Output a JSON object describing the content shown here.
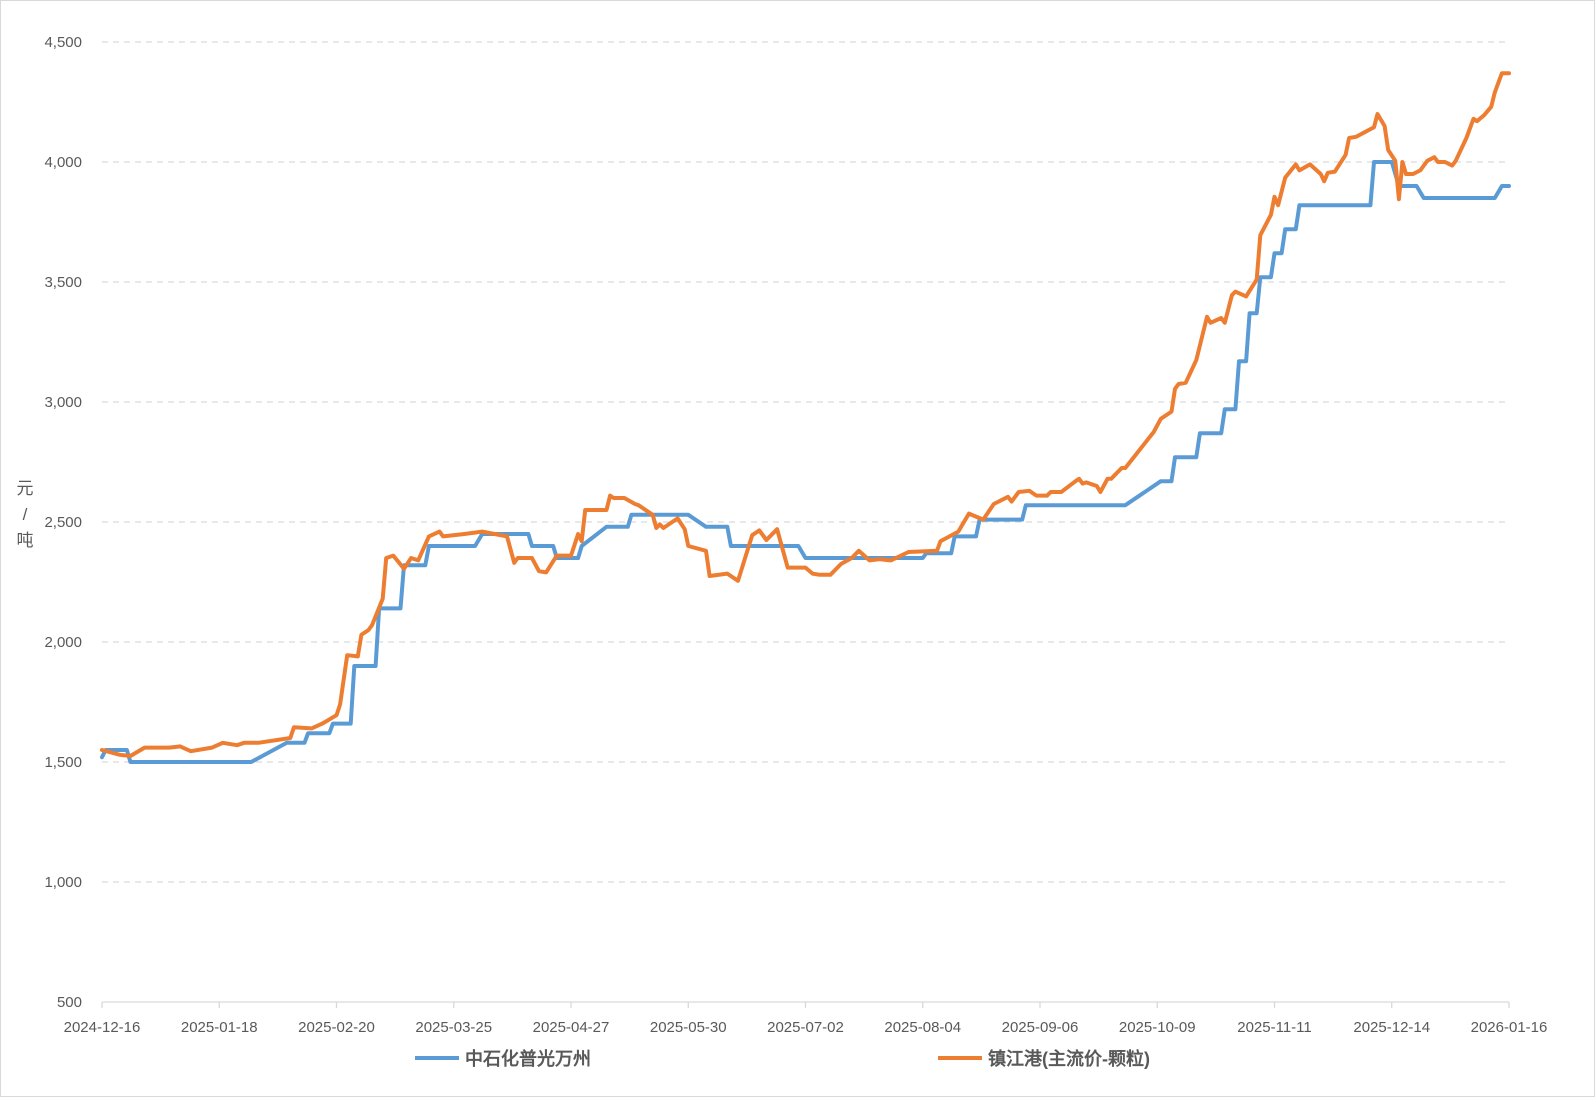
{
  "chart_data": {
    "type": "line",
    "title": "",
    "ylabel": "元/吨",
    "xlabel": "",
    "ylim": [
      500,
      4500
    ],
    "yticks": [
      500,
      1000,
      1500,
      2000,
      2500,
      3000,
      3500,
      4000,
      4500
    ],
    "ytick_labels": [
      "500",
      "1,000",
      "1,500",
      "2,000",
      "2,500",
      "3,000",
      "3,500",
      "4,000",
      "4,500"
    ],
    "xlim": [
      "2024-12-16",
      "2026-01-16"
    ],
    "xticks": [
      "2024-12-16",
      "2025-01-18",
      "2025-02-20",
      "2025-03-25",
      "2025-04-27",
      "2025-05-30",
      "2025-07-02",
      "2025-08-04",
      "2025-09-06",
      "2025-10-09",
      "2025-11-11",
      "2025-12-14",
      "2026-01-16"
    ],
    "grid": "horizontal dashed",
    "legend_position": "bottom",
    "series": [
      {
        "name": "中石化普光万州",
        "color": "#5b9bd5",
        "points": [
          [
            "2024-12-16",
            1520
          ],
          [
            "2024-12-17",
            1550
          ],
          [
            "2024-12-23",
            1550
          ],
          [
            "2024-12-24",
            1500
          ],
          [
            "2025-01-27",
            1500
          ],
          [
            "2025-02-06",
            1580
          ],
          [
            "2025-02-11",
            1580
          ],
          [
            "2025-02-12",
            1620
          ],
          [
            "2025-02-18",
            1620
          ],
          [
            "2025-02-19",
            1660
          ],
          [
            "2025-02-24",
            1660
          ],
          [
            "2025-02-25",
            1900
          ],
          [
            "2025-03-03",
            1900
          ],
          [
            "2025-03-04",
            2140
          ],
          [
            "2025-03-10",
            2140
          ],
          [
            "2025-03-11",
            2320
          ],
          [
            "2025-03-17",
            2320
          ],
          [
            "2025-03-18",
            2400
          ],
          [
            "2025-03-31",
            2400
          ],
          [
            "2025-04-02",
            2450
          ],
          [
            "2025-04-15",
            2450
          ],
          [
            "2025-04-16",
            2400
          ],
          [
            "2025-04-22",
            2400
          ],
          [
            "2025-04-23",
            2350
          ],
          [
            "2025-04-29",
            2350
          ],
          [
            "2025-04-30",
            2400
          ],
          [
            "2025-05-07",
            2480
          ],
          [
            "2025-05-13",
            2480
          ],
          [
            "2025-05-14",
            2530
          ],
          [
            "2025-05-30",
            2530
          ],
          [
            "2025-06-04",
            2480
          ],
          [
            "2025-06-10",
            2480
          ],
          [
            "2025-06-11",
            2400
          ],
          [
            "2025-06-30",
            2400
          ],
          [
            "2025-07-02",
            2350
          ],
          [
            "2025-08-04",
            2350
          ],
          [
            "2025-08-05",
            2370
          ],
          [
            "2025-08-12",
            2370
          ],
          [
            "2025-08-13",
            2440
          ],
          [
            "2025-08-19",
            2440
          ],
          [
            "2025-08-20",
            2510
          ],
          [
            "2025-09-01",
            2510
          ],
          [
            "2025-09-02",
            2570
          ],
          [
            "2025-09-30",
            2570
          ],
          [
            "2025-10-10",
            2670
          ],
          [
            "2025-10-13",
            2670
          ],
          [
            "2025-10-14",
            2770
          ],
          [
            "2025-10-20",
            2770
          ],
          [
            "2025-10-21",
            2870
          ],
          [
            "2025-10-27",
            2870
          ],
          [
            "2025-10-28",
            2970
          ],
          [
            "2025-10-31",
            2970
          ],
          [
            "2025-11-01",
            3170
          ],
          [
            "2025-11-03",
            3170
          ],
          [
            "2025-11-04",
            3370
          ],
          [
            "2025-11-06",
            3370
          ],
          [
            "2025-11-07",
            3520
          ],
          [
            "2025-11-10",
            3520
          ],
          [
            "2025-11-11",
            3620
          ],
          [
            "2025-11-13",
            3620
          ],
          [
            "2025-11-14",
            3720
          ],
          [
            "2025-11-17",
            3720
          ],
          [
            "2025-11-18",
            3820
          ],
          [
            "2025-12-08",
            3820
          ],
          [
            "2025-12-09",
            4000
          ],
          [
            "2025-12-14",
            4000
          ],
          [
            "2025-12-16",
            3900
          ],
          [
            "2025-12-21",
            3900
          ],
          [
            "2025-12-23",
            3850
          ],
          [
            "2026-01-12",
            3850
          ],
          [
            "2026-01-14",
            3900
          ],
          [
            "2026-01-16",
            3900
          ]
        ]
      },
      {
        "name": "镇江港(主流价-颗粒)",
        "color": "#ed7d31",
        "points": [
          [
            "2024-12-16",
            1550
          ],
          [
            "2024-12-21",
            1530
          ],
          [
            "2024-12-24",
            1525
          ],
          [
            "2024-12-28",
            1560
          ],
          [
            "2025-01-04",
            1560
          ],
          [
            "2025-01-07",
            1565
          ],
          [
            "2025-01-10",
            1545
          ],
          [
            "2025-01-16",
            1560
          ],
          [
            "2025-01-19",
            1580
          ],
          [
            "2025-01-23",
            1570
          ],
          [
            "2025-01-25",
            1580
          ],
          [
            "2025-01-29",
            1580
          ],
          [
            "2025-02-07",
            1600
          ],
          [
            "2025-02-08",
            1645
          ],
          [
            "2025-02-13",
            1640
          ],
          [
            "2025-02-16",
            1660
          ],
          [
            "2025-02-20",
            1695
          ],
          [
            "2025-02-21",
            1740
          ],
          [
            "2025-02-23",
            1945
          ],
          [
            "2025-02-26",
            1940
          ],
          [
            "2025-02-27",
            2030
          ],
          [
            "2025-03-01",
            2050
          ],
          [
            "2025-03-02",
            2070
          ],
          [
            "2025-03-05",
            2180
          ],
          [
            "2025-03-06",
            2350
          ],
          [
            "2025-03-08",
            2360
          ],
          [
            "2025-03-11",
            2305
          ],
          [
            "2025-03-13",
            2350
          ],
          [
            "2025-03-15",
            2340
          ],
          [
            "2025-03-18",
            2440
          ],
          [
            "2025-03-21",
            2460
          ],
          [
            "2025-03-22",
            2440
          ],
          [
            "2025-03-28",
            2450
          ],
          [
            "2025-04-02",
            2460
          ],
          [
            "2025-04-09",
            2440
          ],
          [
            "2025-04-11",
            2330
          ],
          [
            "2025-04-12",
            2350
          ],
          [
            "2025-04-16",
            2350
          ],
          [
            "2025-04-18",
            2295
          ],
          [
            "2025-04-20",
            2290
          ],
          [
            "2025-04-23",
            2360
          ],
          [
            "2025-04-27",
            2360
          ],
          [
            "2025-04-29",
            2450
          ],
          [
            "2025-04-30",
            2420
          ],
          [
            "2025-05-01",
            2550
          ],
          [
            "2025-05-07",
            2550
          ],
          [
            "2025-05-08",
            2610
          ],
          [
            "2025-05-09",
            2600
          ],
          [
            "2025-05-12",
            2600
          ],
          [
            "2025-05-15",
            2575
          ],
          [
            "2025-05-16",
            2570
          ],
          [
            "2025-05-20",
            2530
          ],
          [
            "2025-05-21",
            2475
          ],
          [
            "2025-05-22",
            2490
          ],
          [
            "2025-05-23",
            2475
          ],
          [
            "2025-05-27",
            2515
          ],
          [
            "2025-05-29",
            2470
          ],
          [
            "2025-05-30",
            2400
          ],
          [
            "2025-06-04",
            2380
          ],
          [
            "2025-06-05",
            2275
          ],
          [
            "2025-06-10",
            2285
          ],
          [
            "2025-06-13",
            2255
          ],
          [
            "2025-06-17",
            2445
          ],
          [
            "2025-06-19",
            2465
          ],
          [
            "2025-06-21",
            2425
          ],
          [
            "2025-06-24",
            2470
          ],
          [
            "2025-06-27",
            2310
          ],
          [
            "2025-07-02",
            2310
          ],
          [
            "2025-07-04",
            2285
          ],
          [
            "2025-07-06",
            2280
          ],
          [
            "2025-07-09",
            2280
          ],
          [
            "2025-07-12",
            2325
          ],
          [
            "2025-07-15",
            2350
          ],
          [
            "2025-07-17",
            2380
          ],
          [
            "2025-07-20",
            2340
          ],
          [
            "2025-07-23",
            2345
          ],
          [
            "2025-07-26",
            2340
          ],
          [
            "2025-07-31",
            2375
          ],
          [
            "2025-08-08",
            2380
          ],
          [
            "2025-08-09",
            2420
          ],
          [
            "2025-08-14",
            2460
          ],
          [
            "2025-08-15",
            2485
          ],
          [
            "2025-08-17",
            2535
          ],
          [
            "2025-08-21",
            2510
          ],
          [
            "2025-08-24",
            2575
          ],
          [
            "2025-08-28",
            2605
          ],
          [
            "2025-08-29",
            2585
          ],
          [
            "2025-08-31",
            2625
          ],
          [
            "2025-09-03",
            2630
          ],
          [
            "2025-09-05",
            2610
          ],
          [
            "2025-09-08",
            2610
          ],
          [
            "2025-09-09",
            2625
          ],
          [
            "2025-09-12",
            2625
          ],
          [
            "2025-09-16",
            2670
          ],
          [
            "2025-09-17",
            2680
          ],
          [
            "2025-09-18",
            2660
          ],
          [
            "2025-09-19",
            2665
          ],
          [
            "2025-09-22",
            2650
          ],
          [
            "2025-09-23",
            2625
          ],
          [
            "2025-09-25",
            2680
          ],
          [
            "2025-09-26",
            2680
          ],
          [
            "2025-09-29",
            2725
          ],
          [
            "2025-09-30",
            2725
          ],
          [
            "2025-10-08",
            2875
          ],
          [
            "2025-10-10",
            2930
          ],
          [
            "2025-10-13",
            2960
          ],
          [
            "2025-10-14",
            3055
          ],
          [
            "2025-10-15",
            3075
          ],
          [
            "2025-10-17",
            3080
          ],
          [
            "2025-10-20",
            3175
          ],
          [
            "2025-10-23",
            3355
          ],
          [
            "2025-10-24",
            3330
          ],
          [
            "2025-10-27",
            3350
          ],
          [
            "2025-10-28",
            3330
          ],
          [
            "2025-10-30",
            3445
          ],
          [
            "2025-10-31",
            3460
          ],
          [
            "2025-11-03",
            3440
          ],
          [
            "2025-11-06",
            3510
          ],
          [
            "2025-11-07",
            3695
          ],
          [
            "2025-11-10",
            3780
          ],
          [
            "2025-11-11",
            3855
          ],
          [
            "2025-11-12",
            3820
          ],
          [
            "2025-11-14",
            3935
          ],
          [
            "2025-11-17",
            3990
          ],
          [
            "2025-11-18",
            3965
          ],
          [
            "2025-11-21",
            3990
          ],
          [
            "2025-11-24",
            3950
          ],
          [
            "2025-11-25",
            3920
          ],
          [
            "2025-11-26",
            3955
          ],
          [
            "2025-11-28",
            3960
          ],
          [
            "2025-12-01",
            4030
          ],
          [
            "2025-12-02",
            4100
          ],
          [
            "2025-12-04",
            4105
          ],
          [
            "2025-12-09",
            4145
          ],
          [
            "2025-12-10",
            4200
          ],
          [
            "2025-12-12",
            4150
          ],
          [
            "2025-12-13",
            4050
          ],
          [
            "2025-12-15",
            4005
          ],
          [
            "2025-12-16",
            3845
          ],
          [
            "2025-12-17",
            4000
          ],
          [
            "2025-12-18",
            3950
          ],
          [
            "2025-12-20",
            3950
          ],
          [
            "2025-12-22",
            3965
          ],
          [
            "2025-12-24",
            4005
          ],
          [
            "2025-12-26",
            4020
          ],
          [
            "2025-12-27",
            4000
          ],
          [
            "2025-12-29",
            4000
          ],
          [
            "2025-12-31",
            3985
          ],
          [
            "2026-01-01",
            4005
          ],
          [
            "2026-01-04",
            4100
          ],
          [
            "2026-01-06",
            4180
          ],
          [
            "2026-01-07",
            4170
          ],
          [
            "2026-01-09",
            4195
          ],
          [
            "2026-01-11",
            4230
          ],
          [
            "2026-01-12",
            4290
          ],
          [
            "2026-01-14",
            4370
          ],
          [
            "2026-01-16",
            4370
          ]
        ]
      }
    ]
  }
}
